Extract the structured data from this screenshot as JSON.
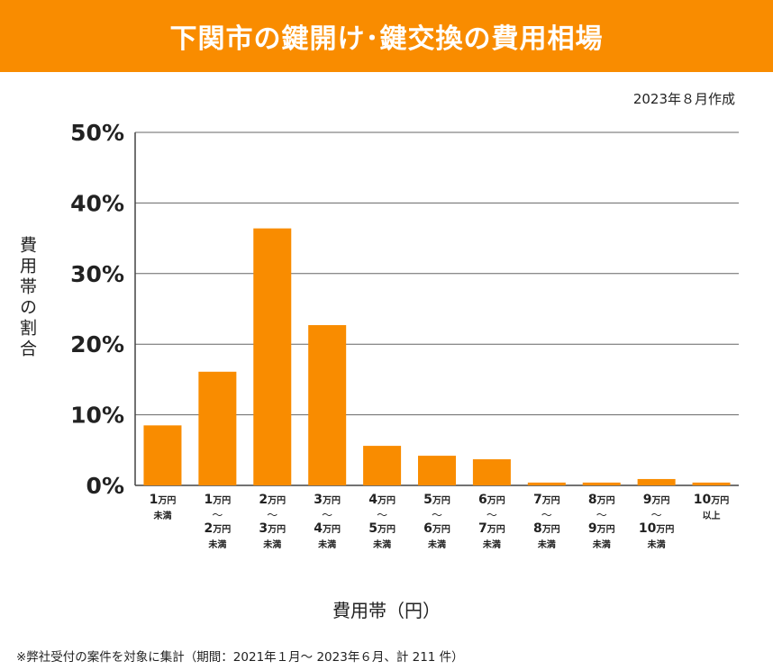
{
  "chart_data": {
    "type": "bar",
    "title": "下関市の鍵開け･鍵交換の費用相場",
    "note": "2023年８月作成",
    "ylabel": "費用帯の割合",
    "xlabel": "費用帯（円）",
    "ylim": [
      0,
      50
    ],
    "yticks": [
      "0%",
      "10%",
      "20%",
      "30%",
      "40%",
      "50%"
    ],
    "grid": true,
    "bar_color": "#f98c00",
    "categories": [
      {
        "lines": [
          {
            "num": "1",
            "unit": "万円"
          },
          {
            "small": "未満"
          }
        ]
      },
      {
        "lines": [
          {
            "num": "1",
            "unit": "万円"
          },
          {
            "tilde": "〜"
          },
          {
            "num": "2",
            "unit": "万円"
          },
          {
            "small": "未満"
          }
        ]
      },
      {
        "lines": [
          {
            "num": "2",
            "unit": "万円"
          },
          {
            "tilde": "〜"
          },
          {
            "num": "3",
            "unit": "万円"
          },
          {
            "small": "未満"
          }
        ]
      },
      {
        "lines": [
          {
            "num": "3",
            "unit": "万円"
          },
          {
            "tilde": "〜"
          },
          {
            "num": "4",
            "unit": "万円"
          },
          {
            "small": "未満"
          }
        ]
      },
      {
        "lines": [
          {
            "num": "4",
            "unit": "万円"
          },
          {
            "tilde": "〜"
          },
          {
            "num": "5",
            "unit": "万円"
          },
          {
            "small": "未満"
          }
        ]
      },
      {
        "lines": [
          {
            "num": "5",
            "unit": "万円"
          },
          {
            "tilde": "〜"
          },
          {
            "num": "6",
            "unit": "万円"
          },
          {
            "small": "未満"
          }
        ]
      },
      {
        "lines": [
          {
            "num": "6",
            "unit": "万円"
          },
          {
            "tilde": "〜"
          },
          {
            "num": "7",
            "unit": "万円"
          },
          {
            "small": "未満"
          }
        ]
      },
      {
        "lines": [
          {
            "num": "7",
            "unit": "万円"
          },
          {
            "tilde": "〜"
          },
          {
            "num": "8",
            "unit": "万円"
          },
          {
            "small": "未満"
          }
        ]
      },
      {
        "lines": [
          {
            "num": "8",
            "unit": "万円"
          },
          {
            "tilde": "〜"
          },
          {
            "num": "9",
            "unit": "万円"
          },
          {
            "small": "未満"
          }
        ]
      },
      {
        "lines": [
          {
            "num": "9",
            "unit": "万円"
          },
          {
            "tilde": "〜"
          },
          {
            "num": "10",
            "unit": "万円"
          },
          {
            "small": "未満"
          }
        ]
      },
      {
        "lines": [
          {
            "num": "10",
            "unit": "万円"
          },
          {
            "small": "以上"
          }
        ]
      }
    ],
    "values": [
      8.5,
      16.1,
      36.4,
      22.7,
      5.6,
      4.2,
      3.7,
      0.4,
      0.4,
      0.9,
      0.4
    ]
  },
  "footnote": "※弊社受付の案件を対象に集計（期間：2021年１月～ 2023年６月、計 211 件）"
}
